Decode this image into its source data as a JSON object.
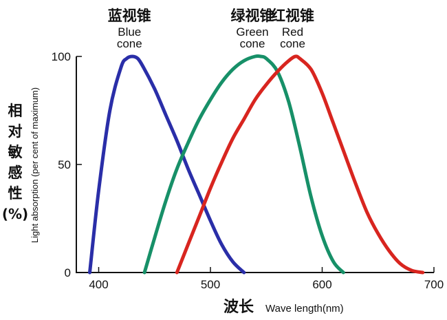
{
  "chart_data": {
    "type": "line",
    "xlabel_cn": "波长",
    "xlabel_en": "Wave length(nm)",
    "ylabel_cn": [
      "相",
      "对",
      "敏",
      "感",
      "性",
      "(%)"
    ],
    "ylabel_en": "Light absorption (per cent of maximum)",
    "xlim": [
      380,
      700
    ],
    "ylim": [
      0,
      100
    ],
    "x_ticks": [
      400,
      500,
      600,
      700
    ],
    "y_ticks": [
      0,
      50,
      100
    ],
    "grid": false,
    "series": [
      {
        "name_cn": "蓝视锥",
        "name_en": [
          "Blue",
          "cone"
        ],
        "color": "#2a2ea8",
        "x": [
          392,
          400,
          410,
          420,
          425,
          430,
          435,
          440,
          450,
          460,
          470,
          480,
          490,
          500,
          510,
          520,
          530
        ],
        "y": [
          0,
          38,
          75,
          95,
          99,
          100,
          99,
          95,
          85,
          73,
          61,
          48,
          36,
          24,
          13,
          5,
          0
        ]
      },
      {
        "name_cn": "绿视锥",
        "name_en": [
          "Green",
          "cone"
        ],
        "color": "#179068",
        "x": [
          441,
          450,
          460,
          470,
          480,
          490,
          500,
          510,
          520,
          530,
          540,
          545,
          550,
          560,
          570,
          580,
          590,
          600,
          610,
          619
        ],
        "y": [
          0,
          16,
          33,
          48,
          60,
          71,
          80,
          88,
          94,
          98,
          100,
          100,
          99,
          93,
          79,
          58,
          35,
          17,
          5,
          0
        ]
      },
      {
        "name_cn": "红视锥",
        "name_en": [
          "Red",
          "cone"
        ],
        "color": "#d8251f",
        "x": [
          470,
          480,
          490,
          500,
          510,
          520,
          530,
          540,
          550,
          560,
          570,
          576,
          580,
          590,
          600,
          610,
          620,
          630,
          640,
          650,
          660,
          670,
          680,
          690
        ],
        "y": [
          0,
          13,
          26,
          39,
          51,
          62,
          71,
          80,
          87,
          93,
          98,
          100,
          99,
          94,
          83,
          69,
          55,
          41,
          28,
          18,
          10,
          4,
          1,
          0
        ]
      }
    ]
  }
}
